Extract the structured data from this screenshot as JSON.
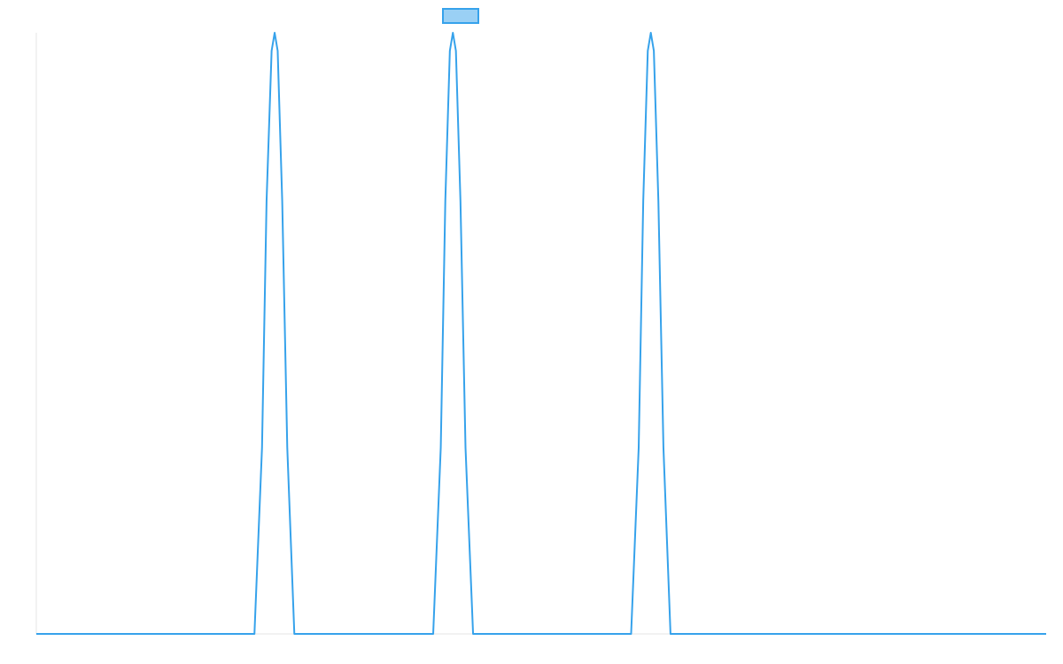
{
  "colors": {
    "line": "#36a2eb",
    "legend_fill": "#9ad0f5",
    "axis": "#e6e6e6",
    "background": "#ffffff"
  },
  "chart_data": {
    "type": "line",
    "title": "",
    "xlabel": "",
    "ylabel": "",
    "grid": false,
    "legend_position": "top",
    "ylim": [
      0,
      1
    ],
    "xlim": [
      0,
      1
    ],
    "series": [
      {
        "legend_swatch": true,
        "points": [
          [
            0.0,
            0.0
          ],
          [
            0.216,
            0.0
          ],
          [
            0.2235,
            0.31
          ],
          [
            0.228,
            0.72
          ],
          [
            0.233,
            0.97
          ],
          [
            0.236,
            1.0
          ],
          [
            0.239,
            0.97
          ],
          [
            0.2435,
            0.72
          ],
          [
            0.2485,
            0.31
          ],
          [
            0.2555,
            0.0
          ],
          [
            0.393,
            0.0
          ],
          [
            0.4005,
            0.31
          ],
          [
            0.405,
            0.72
          ],
          [
            0.4095,
            0.97
          ],
          [
            0.4125,
            1.0
          ],
          [
            0.4155,
            0.97
          ],
          [
            0.42,
            0.72
          ],
          [
            0.425,
            0.31
          ],
          [
            0.4325,
            0.0
          ],
          [
            0.589,
            0.0
          ],
          [
            0.5965,
            0.31
          ],
          [
            0.601,
            0.72
          ],
          [
            0.6055,
            0.97
          ],
          [
            0.6085,
            1.0
          ],
          [
            0.6115,
            0.97
          ],
          [
            0.616,
            0.72
          ],
          [
            0.621,
            0.31
          ],
          [
            0.628,
            0.0
          ],
          [
            1.0,
            0.0
          ]
        ]
      }
    ]
  }
}
